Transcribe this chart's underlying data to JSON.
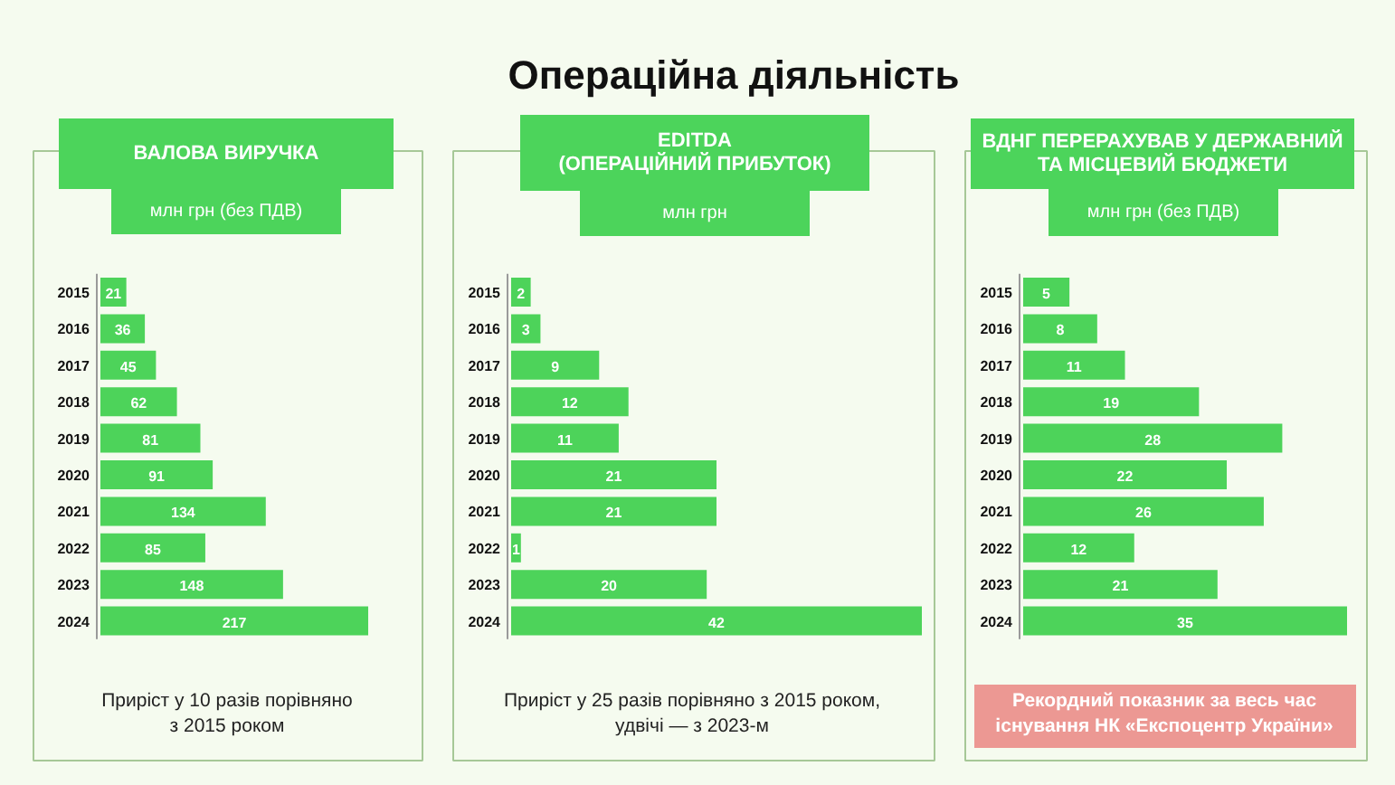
{
  "chart_data": [
    {
      "type": "other",
      "title": "Операційна діяльність"
    },
    {
      "type": "bar",
      "orientation": "horizontal",
      "title": "ВАЛОВА ВИРУЧКА",
      "subtitle": "млн грн (без ПДВ)",
      "categories": [
        "2015",
        "2016",
        "2017",
        "2018",
        "2019",
        "2020",
        "2021",
        "2022",
        "2023",
        "2024"
      ],
      "values": [
        21,
        36,
        45,
        62,
        81,
        91,
        134,
        85,
        148,
        217
      ],
      "color": "#4dd35a",
      "data_labels": true,
      "tick_labels": "y",
      "annotations": [
        "Приріст у 10 разів порівняно\nз 2015 роком"
      ]
    },
    {
      "type": "bar",
      "orientation": "horizontal",
      "title": "EDITDA\n(ОПЕРАЦІЙНИЙ ПРИБУТОК)",
      "subtitle": "млн грн",
      "categories": [
        "2015",
        "2016",
        "2017",
        "2018",
        "2019",
        "2020",
        "2021",
        "2022",
        "2023",
        "2024"
      ],
      "values": [
        2,
        3,
        9,
        12,
        11,
        21,
        21,
        1,
        20,
        42
      ],
      "color": "#4dd35a",
      "data_labels": true,
      "tick_labels": "y",
      "annotations": [
        "Приріст у 25 разів порівняно з 2015 роком,\nудвічі — з 2023-м"
      ]
    },
    {
      "type": "bar",
      "orientation": "horizontal",
      "title": "ВДНГ ПЕРЕРАХУВАВ У ДЕРЖАВНИЙ\nТА МІСЦЕВИЙ БЮДЖЕТИ",
      "subtitle": "млн грн (без ПДВ)",
      "categories": [
        "2015",
        "2016",
        "2017",
        "2018",
        "2019",
        "2020",
        "2021",
        "2022",
        "2023",
        "2024"
      ],
      "values": [
        5,
        8,
        11,
        19,
        28,
        22,
        26,
        12,
        21,
        35
      ],
      "color": "#4dd35a",
      "data_labels": true,
      "tick_labels": "y",
      "annotations": [
        "Рекордний показник за весь час\nіснування НК «Експоцентр України»"
      ]
    }
  ]
}
